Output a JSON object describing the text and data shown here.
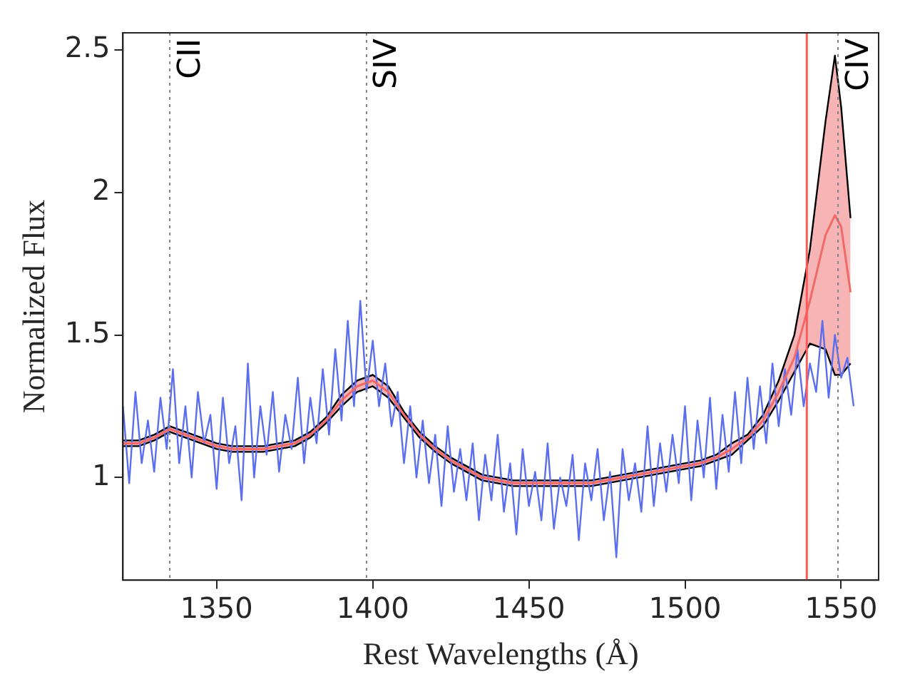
{
  "chart_data": {
    "type": "line",
    "xlabel": "Rest Wavelengths (Å)",
    "ylabel": "Normalized Flux",
    "xlim": [
      1320,
      1562
    ],
    "xticks": [
      1350,
      1400,
      1450,
      1500,
      1550
    ],
    "ylim": [
      0.64,
      2.56
    ],
    "yticks": [
      1,
      1.5,
      2,
      2.5
    ],
    "grid": false,
    "legend": false,
    "marker": "none",
    "line_style": "solid",
    "series": [
      {
        "color": "#5b6ef0",
        "x": [
          1320,
          1322,
          1324,
          1326,
          1328,
          1330,
          1332,
          1334,
          1336,
          1338,
          1340,
          1342,
          1344,
          1346,
          1348,
          1350,
          1352,
          1354,
          1356,
          1358,
          1360,
          1362,
          1364,
          1366,
          1368,
          1370,
          1372,
          1374,
          1376,
          1378,
          1380,
          1382,
          1384,
          1386,
          1388,
          1390,
          1392,
          1394,
          1396,
          1398,
          1400,
          1402,
          1404,
          1406,
          1408,
          1410,
          1412,
          1414,
          1416,
          1418,
          1420,
          1422,
          1424,
          1426,
          1428,
          1430,
          1432,
          1434,
          1436,
          1438,
          1440,
          1442,
          1444,
          1446,
          1448,
          1450,
          1452,
          1454,
          1456,
          1458,
          1460,
          1462,
          1464,
          1466,
          1468,
          1470,
          1472,
          1474,
          1476,
          1478,
          1480,
          1482,
          1484,
          1486,
          1488,
          1490,
          1492,
          1494,
          1496,
          1498,
          1500,
          1502,
          1504,
          1506,
          1508,
          1510,
          1512,
          1514,
          1516,
          1518,
          1520,
          1522,
          1524,
          1526,
          1528,
          1530,
          1532,
          1534,
          1536,
          1538,
          1540,
          1542,
          1544,
          1546,
          1548,
          1550,
          1552,
          1554
        ],
        "values": [
          1.25,
          0.98,
          1.3,
          1.05,
          1.2,
          1.02,
          1.28,
          1.1,
          1.38,
          1.05,
          1.25,
          1.0,
          1.3,
          1.12,
          1.22,
          0.96,
          1.28,
          1.05,
          1.18,
          0.92,
          1.4,
          1.0,
          1.25,
          1.08,
          1.3,
          1.02,
          1.22,
          1.1,
          1.35,
          1.05,
          1.28,
          1.12,
          1.38,
          1.15,
          1.45,
          1.2,
          1.55,
          1.25,
          1.62,
          1.3,
          1.48,
          1.25,
          1.4,
          1.18,
          1.3,
          1.05,
          1.25,
          1.0,
          1.2,
          0.98,
          1.15,
          0.9,
          1.18,
          0.95,
          1.1,
          0.92,
          1.12,
          0.85,
          1.08,
          0.92,
          1.15,
          0.88,
          1.05,
          0.8,
          1.1,
          0.9,
          1.02,
          0.85,
          1.12,
          0.82,
          1.0,
          0.9,
          1.08,
          0.78,
          1.05,
          0.92,
          1.1,
          0.85,
          1.02,
          0.72,
          1.1,
          0.92,
          1.05,
          0.88,
          1.18,
          0.9,
          1.12,
          0.95,
          1.15,
          0.98,
          1.25,
          0.92,
          1.2,
          1.0,
          1.28,
          0.96,
          1.22,
          1.02,
          1.3,
          1.05,
          1.35,
          1.1,
          1.32,
          1.12,
          1.4,
          1.18,
          1.38,
          1.22,
          1.45,
          1.25,
          1.4,
          1.3,
          1.55,
          1.28,
          1.5,
          1.35,
          1.42,
          1.25
        ]
      },
      {
        "color": "#f06a6a",
        "x": [
          1320,
          1325,
          1330,
          1335,
          1340,
          1345,
          1350,
          1355,
          1360,
          1365,
          1370,
          1375,
          1380,
          1385,
          1390,
          1395,
          1400,
          1405,
          1410,
          1415,
          1420,
          1425,
          1430,
          1435,
          1440,
          1445,
          1450,
          1455,
          1460,
          1465,
          1470,
          1475,
          1480,
          1485,
          1490,
          1495,
          1500,
          1505,
          1510,
          1515,
          1520,
          1525,
          1530,
          1535,
          1540,
          1545,
          1548,
          1550,
          1553
        ],
        "values": [
          1.12,
          1.12,
          1.14,
          1.17,
          1.15,
          1.13,
          1.11,
          1.1,
          1.1,
          1.1,
          1.11,
          1.12,
          1.15,
          1.2,
          1.27,
          1.32,
          1.34,
          1.3,
          1.22,
          1.15,
          1.1,
          1.06,
          1.03,
          1.0,
          0.99,
          0.98,
          0.98,
          0.98,
          0.98,
          0.98,
          0.98,
          0.99,
          1.0,
          1.01,
          1.02,
          1.03,
          1.04,
          1.05,
          1.07,
          1.1,
          1.14,
          1.2,
          1.3,
          1.42,
          1.62,
          1.85,
          1.92,
          1.88,
          1.65
        ],
        "lower": [
          1.11,
          1.11,
          1.13,
          1.16,
          1.14,
          1.12,
          1.1,
          1.09,
          1.09,
          1.09,
          1.1,
          1.11,
          1.14,
          1.19,
          1.25,
          1.3,
          1.32,
          1.28,
          1.21,
          1.14,
          1.09,
          1.05,
          1.02,
          0.99,
          0.98,
          0.97,
          0.97,
          0.97,
          0.97,
          0.97,
          0.97,
          0.98,
          0.99,
          1.0,
          1.01,
          1.02,
          1.03,
          1.04,
          1.06,
          1.08,
          1.13,
          1.18,
          1.27,
          1.37,
          1.47,
          1.45,
          1.36,
          1.36,
          1.4
        ],
        "upper": [
          1.13,
          1.13,
          1.15,
          1.18,
          1.16,
          1.14,
          1.12,
          1.11,
          1.11,
          1.11,
          1.12,
          1.13,
          1.16,
          1.21,
          1.29,
          1.34,
          1.36,
          1.32,
          1.23,
          1.16,
          1.11,
          1.07,
          1.04,
          1.01,
          1.0,
          0.99,
          0.99,
          0.99,
          0.99,
          0.99,
          0.99,
          1.0,
          1.01,
          1.02,
          1.03,
          1.04,
          1.05,
          1.06,
          1.08,
          1.12,
          1.15,
          1.22,
          1.34,
          1.5,
          1.8,
          2.25,
          2.48,
          2.3,
          1.91
        ]
      },
      {
        "color": "#000000",
        "x": [
          1320,
          1325,
          1330,
          1335,
          1340,
          1345,
          1350,
          1355,
          1360,
          1365,
          1370,
          1375,
          1380,
          1385,
          1390,
          1395,
          1400,
          1405,
          1410,
          1415,
          1420,
          1425,
          1430,
          1435,
          1440,
          1445,
          1450,
          1455,
          1460,
          1465,
          1470,
          1475,
          1480,
          1485,
          1490,
          1495,
          1500,
          1505,
          1510,
          1515,
          1520,
          1525,
          1530,
          1535,
          1540,
          1545,
          1548,
          1550,
          1553
        ],
        "values": [
          1.11,
          1.11,
          1.13,
          1.16,
          1.14,
          1.12,
          1.1,
          1.09,
          1.09,
          1.09,
          1.1,
          1.11,
          1.14,
          1.19,
          1.25,
          1.3,
          1.32,
          1.28,
          1.21,
          1.14,
          1.09,
          1.05,
          1.02,
          0.99,
          0.98,
          0.97,
          0.97,
          0.97,
          0.97,
          0.97,
          0.97,
          0.98,
          0.99,
          1.0,
          1.01,
          1.02,
          1.03,
          1.04,
          1.06,
          1.08,
          1.13,
          1.18,
          1.27,
          1.37,
          1.47,
          1.45,
          1.36,
          1.36,
          1.4
        ]
      },
      {
        "color": "#000000",
        "x": [
          1320,
          1325,
          1330,
          1335,
          1340,
          1345,
          1350,
          1355,
          1360,
          1365,
          1370,
          1375,
          1380,
          1385,
          1390,
          1395,
          1400,
          1405,
          1410,
          1415,
          1420,
          1425,
          1430,
          1435,
          1440,
          1445,
          1450,
          1455,
          1460,
          1465,
          1470,
          1475,
          1480,
          1485,
          1490,
          1495,
          1500,
          1505,
          1510,
          1515,
          1520,
          1525,
          1530,
          1535,
          1540,
          1545,
          1548,
          1550,
          1553
        ],
        "values": [
          1.13,
          1.13,
          1.15,
          1.18,
          1.16,
          1.14,
          1.12,
          1.11,
          1.11,
          1.11,
          1.12,
          1.13,
          1.16,
          1.21,
          1.29,
          1.34,
          1.36,
          1.32,
          1.23,
          1.16,
          1.11,
          1.07,
          1.04,
          1.01,
          1.0,
          0.99,
          0.99,
          0.99,
          0.99,
          0.99,
          0.99,
          1.0,
          1.01,
          1.02,
          1.03,
          1.04,
          1.05,
          1.06,
          1.08,
          1.12,
          1.15,
          1.22,
          1.34,
          1.5,
          1.8,
          2.25,
          2.48,
          2.3,
          1.91
        ]
      }
    ],
    "ref_lines": [
      {
        "axis": "x",
        "value": 1335,
        "label": "CII",
        "color": "#808080",
        "line_style": "dotted"
      },
      {
        "axis": "x",
        "value": 1398,
        "label": "SIV",
        "color": "#808080",
        "line_style": "dotted"
      },
      {
        "axis": "x",
        "value": 1549,
        "label": "CIV",
        "color": "#808080",
        "line_style": "dotted"
      },
      {
        "axis": "x",
        "value": 1539,
        "label": null,
        "color": "#ff5a5a",
        "line_style": "solid"
      }
    ]
  }
}
